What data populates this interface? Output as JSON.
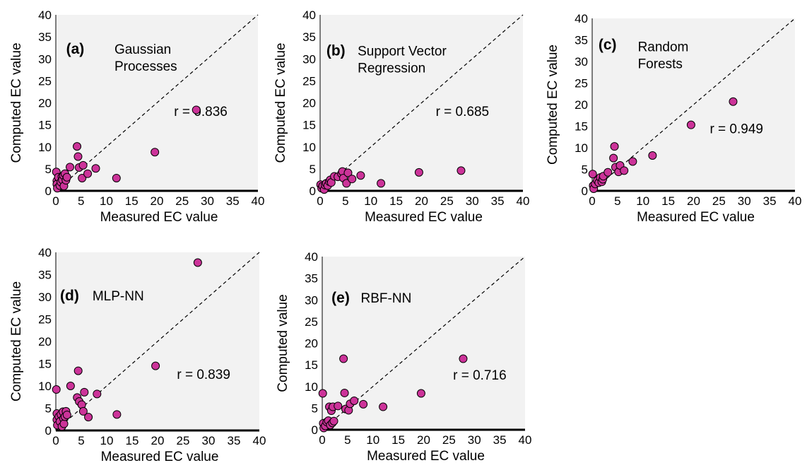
{
  "chart_data": [
    {
      "type": "scatter",
      "panel_label": "(a)",
      "name_lines": [
        "Gaussian",
        "Processes"
      ],
      "xlabel": "Measured EC value",
      "ylabel": "Computed EC value",
      "annotation": "r = 0.836",
      "xlim": [
        0,
        40
      ],
      "ylim": [
        0,
        40
      ],
      "x_ticks": [
        "0",
        "5",
        "10",
        "15",
        "20",
        "25",
        "30",
        "35",
        "40"
      ],
      "y_ticks": [
        "0",
        "5",
        "10",
        "15",
        "20",
        "25",
        "30",
        "35",
        "40"
      ],
      "reference_line": "1:1 dashed",
      "background": "#f2f2f2",
      "marker_color": "#cc3399",
      "points": [
        [
          0.1,
          4.3
        ],
        [
          0.2,
          2.3
        ],
        [
          0.2,
          1.5
        ],
        [
          0.3,
          0.6
        ],
        [
          0.5,
          3.1
        ],
        [
          0.8,
          1.2
        ],
        [
          1.0,
          2.0
        ],
        [
          1.2,
          3.2
        ],
        [
          1.3,
          2.5
        ],
        [
          1.5,
          3.5
        ],
        [
          1.6,
          1.1
        ],
        [
          1.8,
          3.9
        ],
        [
          2.0,
          2.4
        ],
        [
          2.2,
          3.1
        ],
        [
          2.8,
          5.4
        ],
        [
          4.2,
          10.1
        ],
        [
          4.4,
          7.8
        ],
        [
          4.6,
          5.3
        ],
        [
          5.2,
          2.9
        ],
        [
          5.4,
          5.8
        ],
        [
          6.3,
          3.9
        ],
        [
          7.9,
          5.1
        ],
        [
          12.0,
          2.9
        ],
        [
          19.6,
          8.8
        ],
        [
          27.8,
          18.4
        ]
      ]
    },
    {
      "type": "scatter",
      "panel_label": "(b)",
      "name_lines": [
        "Support Vector",
        "Regression"
      ],
      "xlabel": "Measured EC value",
      "ylabel": "Computed EC value",
      "annotation": "r = 0.685",
      "xlim": [
        0,
        40
      ],
      "ylim": [
        0,
        40
      ],
      "x_ticks": [
        "0",
        "5",
        "10",
        "15",
        "20",
        "25",
        "30",
        "35",
        "40"
      ],
      "y_ticks": [
        "0",
        "5",
        "10",
        "15",
        "20",
        "25",
        "30",
        "35",
        "40"
      ],
      "reference_line": "1:1 dashed",
      "background": "#f2f2f2",
      "marker_color": "#cc3399",
      "points": [
        [
          0.1,
          1.4
        ],
        [
          0.3,
          0.6
        ],
        [
          0.5,
          1.1
        ],
        [
          0.8,
          0.3
        ],
        [
          1.0,
          1.3
        ],
        [
          1.2,
          1.7
        ],
        [
          1.5,
          1.2
        ],
        [
          1.8,
          2.1
        ],
        [
          2.0,
          2.5
        ],
        [
          2.2,
          1.9
        ],
        [
          2.8,
          3.3
        ],
        [
          3.5,
          3.2
        ],
        [
          4.2,
          3.9
        ],
        [
          4.4,
          4.4
        ],
        [
          4.6,
          2.9
        ],
        [
          5.2,
          1.7
        ],
        [
          5.5,
          4.1
        ],
        [
          6.3,
          2.7
        ],
        [
          8.0,
          3.5
        ],
        [
          12.0,
          1.7
        ],
        [
          19.5,
          4.2
        ],
        [
          27.8,
          4.6
        ]
      ]
    },
    {
      "type": "scatter",
      "panel_label": "(c)",
      "name_lines": [
        "Random",
        "Forests"
      ],
      "xlabel": "Measured EC value",
      "ylabel": "Computed EC value",
      "annotation": "r = 0.949",
      "xlim": [
        0,
        40
      ],
      "ylim": [
        0,
        40
      ],
      "x_ticks": [
        "0",
        "5",
        "10",
        "15",
        "20",
        "25",
        "30",
        "35",
        "40"
      ],
      "y_ticks": [
        "0",
        "5",
        "10",
        "15",
        "20",
        "25",
        "30",
        "35",
        "40"
      ],
      "reference_line": "1:1 dashed",
      "background": "#f2f2f2",
      "marker_color": "#cc3399",
      "points": [
        [
          0.1,
          3.9
        ],
        [
          0.2,
          1.2
        ],
        [
          0.3,
          0.5
        ],
        [
          0.6,
          1.6
        ],
        [
          1.0,
          2.4
        ],
        [
          1.3,
          1.9
        ],
        [
          1.6,
          3.1
        ],
        [
          1.9,
          2.1
        ],
        [
          2.1,
          2.7
        ],
        [
          2.2,
          3.4
        ],
        [
          3.1,
          4.3
        ],
        [
          4.2,
          7.6
        ],
        [
          4.4,
          10.3
        ],
        [
          4.6,
          5.5
        ],
        [
          5.2,
          4.4
        ],
        [
          5.5,
          5.9
        ],
        [
          6.3,
          4.7
        ],
        [
          8.0,
          6.8
        ],
        [
          11.9,
          8.2
        ],
        [
          19.5,
          15.3
        ],
        [
          27.8,
          20.7
        ]
      ]
    },
    {
      "type": "scatter",
      "panel_label": "(d)",
      "name_lines": [
        "MLP-NN"
      ],
      "xlabel": "Measured EC value",
      "ylabel": "Computed EC value",
      "annotation": "r = 0.839",
      "xlim": [
        0,
        40
      ],
      "ylim": [
        0,
        40
      ],
      "x_ticks": [
        "0",
        "5",
        "10",
        "15",
        "20",
        "25",
        "30",
        "35",
        "40"
      ],
      "y_ticks": [
        "0",
        "5",
        "10",
        "15",
        "20",
        "25",
        "30",
        "35",
        "40"
      ],
      "reference_line": "1:1 dashed",
      "background": "#f2f2f2",
      "marker_color": "#cc3399",
      "points": [
        [
          0.1,
          9.2
        ],
        [
          0.2,
          3.8
        ],
        [
          0.2,
          2.4
        ],
        [
          0.3,
          1.2
        ],
        [
          0.6,
          3.1
        ],
        [
          0.8,
          2.0
        ],
        [
          1.0,
          3.6
        ],
        [
          1.2,
          0.9
        ],
        [
          1.4,
          4.2
        ],
        [
          1.5,
          2.7
        ],
        [
          1.6,
          1.5
        ],
        [
          1.8,
          3.1
        ],
        [
          2.0,
          4.3
        ],
        [
          2.2,
          3.5
        ],
        [
          2.9,
          10.0
        ],
        [
          4.2,
          7.4
        ],
        [
          4.4,
          13.4
        ],
        [
          4.6,
          6.5
        ],
        [
          5.1,
          5.8
        ],
        [
          5.4,
          4.3
        ],
        [
          5.6,
          8.6
        ],
        [
          6.4,
          3.0
        ],
        [
          8.1,
          8.2
        ],
        [
          12.0,
          3.6
        ],
        [
          19.6,
          14.5
        ],
        [
          27.9,
          37.7
        ]
      ]
    },
    {
      "type": "scatter",
      "panel_label": "(e)",
      "name_lines": [
        "RBF-NN"
      ],
      "xlabel": "Measured EC value",
      "ylabel": "Computed value",
      "annotation": "r = 0.716",
      "xlim": [
        0,
        40
      ],
      "ylim": [
        0,
        40
      ],
      "x_ticks": [
        "0",
        "5",
        "10",
        "15",
        "20",
        "25",
        "30",
        "35",
        "40"
      ],
      "y_ticks": [
        "0",
        "5",
        "10",
        "15",
        "20",
        "25",
        "30",
        "35",
        "40"
      ],
      "reference_line": "1:1 dashed",
      "background": "#f2f2f2",
      "marker_color": "#cc3399",
      "points": [
        [
          0.1,
          8.4
        ],
        [
          0.2,
          1.5
        ],
        [
          0.3,
          0.4
        ],
        [
          0.6,
          0.9
        ],
        [
          0.9,
          1.8
        ],
        [
          1.2,
          2.1
        ],
        [
          1.4,
          5.3
        ],
        [
          1.6,
          1.1
        ],
        [
          1.8,
          4.4
        ],
        [
          2.0,
          1.6
        ],
        [
          2.1,
          5.3
        ],
        [
          2.3,
          2.0
        ],
        [
          3.1,
          5.5
        ],
        [
          4.2,
          16.4
        ],
        [
          4.4,
          8.5
        ],
        [
          4.6,
          4.8
        ],
        [
          5.2,
          4.5
        ],
        [
          5.5,
          6.0
        ],
        [
          6.3,
          6.7
        ],
        [
          8.1,
          5.9
        ],
        [
          12.0,
          5.3
        ],
        [
          19.5,
          8.4
        ],
        [
          27.8,
          16.4
        ]
      ]
    }
  ]
}
